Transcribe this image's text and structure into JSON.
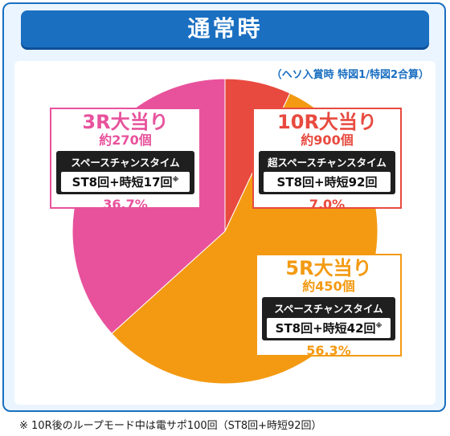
{
  "header": {
    "title": "通常時"
  },
  "subtitle": "（ヘソ入賞時 特図1/特図2合算）",
  "footnote": "※ 10R後のループモード中は電サポ100回（ST8回+時短92回）",
  "colors": {
    "frame": "#1a6fc1",
    "r3": "#e8529c",
    "r10": "#e84a3f",
    "r5": "#f39a12"
  },
  "chart_data": {
    "type": "pie",
    "slices": [
      {
        "label": "10R大当り",
        "count": "約900個",
        "mode": "超スペースチャンスタイム",
        "st": "ST8回+時短92回",
        "note": "",
        "percent_text": "7.0%",
        "value": 7.0,
        "color": "#e84a3f"
      },
      {
        "label": "5R大当り",
        "count": "約450個",
        "mode": "スペースチャンスタイム",
        "st": "ST8回+時短42回",
        "note": "※",
        "percent_text": "56.3%",
        "value": 56.3,
        "color": "#f39a12"
      },
      {
        "label": "3R大当り",
        "count": "約270個",
        "mode": "スペースチャンスタイム",
        "st": "ST8回+時短17回",
        "note": "※",
        "percent_text": "36.7%",
        "value": 36.7,
        "color": "#e8529c"
      }
    ]
  }
}
